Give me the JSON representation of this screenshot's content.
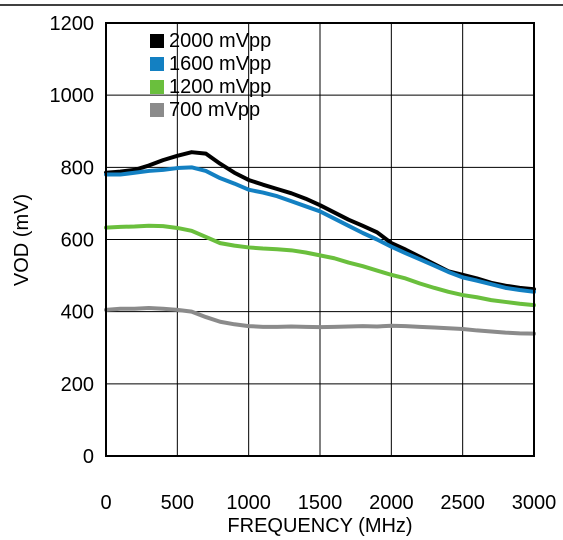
{
  "chart_data": {
    "type": "line",
    "title": "",
    "xlabel": "FREQUENCY (MHz)",
    "ylabel": "VOD (mV)",
    "xlim": [
      0,
      3000
    ],
    "ylim": [
      0,
      1200
    ],
    "xticks": [
      "0",
      "500",
      "1000",
      "1500",
      "2000",
      "2500",
      "3000"
    ],
    "yticks": [
      "0",
      "200",
      "400",
      "600",
      "800",
      "1000",
      "1200"
    ],
    "grid": true,
    "legend_position": "top-left",
    "series": [
      {
        "name": "2000 mVpp",
        "color": "#000000",
        "points": [
          [
            0,
            785
          ],
          [
            100,
            788
          ],
          [
            200,
            793
          ],
          [
            300,
            805
          ],
          [
            400,
            820
          ],
          [
            500,
            832
          ],
          [
            600,
            842
          ],
          [
            700,
            838
          ],
          [
            800,
            810
          ],
          [
            900,
            785
          ],
          [
            1000,
            765
          ],
          [
            1100,
            752
          ],
          [
            1200,
            740
          ],
          [
            1300,
            728
          ],
          [
            1400,
            713
          ],
          [
            1500,
            695
          ],
          [
            1600,
            675
          ],
          [
            1700,
            655
          ],
          [
            1800,
            638
          ],
          [
            1900,
            620
          ],
          [
            2000,
            590
          ],
          [
            2100,
            572
          ],
          [
            2200,
            552
          ],
          [
            2300,
            532
          ],
          [
            2400,
            512
          ],
          [
            2500,
            502
          ],
          [
            2600,
            492
          ],
          [
            2700,
            480
          ],
          [
            2800,
            472
          ],
          [
            2900,
            466
          ],
          [
            3000,
            462
          ]
        ]
      },
      {
        "name": "1600 mVpp",
        "color": "#1380c2",
        "points": [
          [
            0,
            780
          ],
          [
            100,
            780
          ],
          [
            200,
            785
          ],
          [
            300,
            790
          ],
          [
            400,
            793
          ],
          [
            500,
            798
          ],
          [
            600,
            800
          ],
          [
            700,
            790
          ],
          [
            800,
            770
          ],
          [
            900,
            755
          ],
          [
            1000,
            738
          ],
          [
            1100,
            730
          ],
          [
            1200,
            720
          ],
          [
            1300,
            706
          ],
          [
            1400,
            692
          ],
          [
            1500,
            678
          ],
          [
            1600,
            658
          ],
          [
            1700,
            638
          ],
          [
            1800,
            618
          ],
          [
            1900,
            600
          ],
          [
            2000,
            580
          ],
          [
            2100,
            562
          ],
          [
            2200,
            545
          ],
          [
            2300,
            528
          ],
          [
            2400,
            510
          ],
          [
            2500,
            495
          ],
          [
            2600,
            486
          ],
          [
            2700,
            476
          ],
          [
            2800,
            466
          ],
          [
            2900,
            460
          ],
          [
            3000,
            455
          ]
        ]
      },
      {
        "name": "1200 mVpp",
        "color": "#6abf3d",
        "points": [
          [
            0,
            633
          ],
          [
            100,
            635
          ],
          [
            200,
            636
          ],
          [
            300,
            638
          ],
          [
            400,
            637
          ],
          [
            500,
            632
          ],
          [
            600,
            624
          ],
          [
            700,
            607
          ],
          [
            800,
            590
          ],
          [
            900,
            583
          ],
          [
            1000,
            578
          ],
          [
            1100,
            575
          ],
          [
            1200,
            573
          ],
          [
            1300,
            570
          ],
          [
            1400,
            564
          ],
          [
            1500,
            556
          ],
          [
            1600,
            548
          ],
          [
            1700,
            536
          ],
          [
            1800,
            526
          ],
          [
            1900,
            514
          ],
          [
            2000,
            502
          ],
          [
            2100,
            492
          ],
          [
            2200,
            478
          ],
          [
            2300,
            466
          ],
          [
            2400,
            455
          ],
          [
            2500,
            446
          ],
          [
            2600,
            440
          ],
          [
            2700,
            432
          ],
          [
            2800,
            427
          ],
          [
            2900,
            422
          ],
          [
            3000,
            418
          ]
        ]
      },
      {
        "name": "700 mVpp",
        "color": "#8b8b8b",
        "points": [
          [
            0,
            405
          ],
          [
            100,
            408
          ],
          [
            200,
            408
          ],
          [
            300,
            410
          ],
          [
            400,
            408
          ],
          [
            500,
            405
          ],
          [
            600,
            400
          ],
          [
            700,
            385
          ],
          [
            800,
            372
          ],
          [
            900,
            365
          ],
          [
            1000,
            360
          ],
          [
            1100,
            358
          ],
          [
            1200,
            358
          ],
          [
            1300,
            359
          ],
          [
            1400,
            358
          ],
          [
            1500,
            357
          ],
          [
            1600,
            358
          ],
          [
            1700,
            359
          ],
          [
            1800,
            360
          ],
          [
            1900,
            359
          ],
          [
            2000,
            361
          ],
          [
            2100,
            360
          ],
          [
            2200,
            358
          ],
          [
            2300,
            356
          ],
          [
            2400,
            354
          ],
          [
            2500,
            352
          ],
          [
            2600,
            348
          ],
          [
            2700,
            345
          ],
          [
            2800,
            342
          ],
          [
            2900,
            340
          ],
          [
            3000,
            339
          ]
        ]
      }
    ]
  }
}
